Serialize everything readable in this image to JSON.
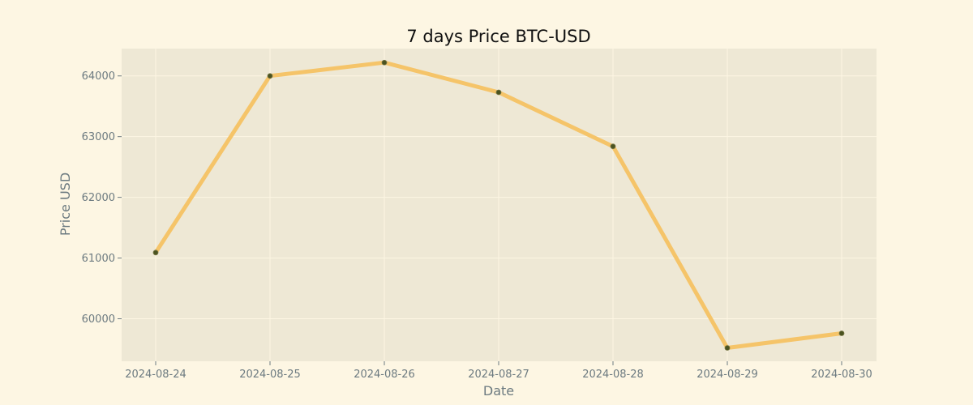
{
  "chart_data": {
    "type": "line",
    "title": "7 days Price BTC-USD",
    "xlabel": "Date",
    "ylabel": "Price USD",
    "x": [
      "2024-08-24",
      "2024-08-25",
      "2024-08-26",
      "2024-08-27",
      "2024-08-28",
      "2024-08-29",
      "2024-08-30"
    ],
    "series": [
      {
        "values": [
          61090,
          64000,
          64220,
          63730,
          62840,
          59520,
          59760
        ],
        "color": "#f5c469"
      }
    ],
    "yticks": [
      60000,
      61000,
      62000,
      63000,
      64000
    ],
    "ylim": [
      59300,
      64450
    ],
    "grid": true,
    "legend": "none",
    "colors": {
      "background": "#fdf6e3",
      "plot_background": "#eee8d5",
      "grid": "#fdf6e3",
      "marker": "#4b5320",
      "text": "#6c7a80"
    }
  }
}
